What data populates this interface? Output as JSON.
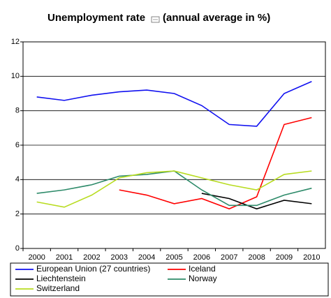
{
  "chart_data": {
    "type": "line",
    "title": "Unemployment rate",
    "subtitle": "(annual average in %)",
    "categories": [
      "2000",
      "2001",
      "2002",
      "2003",
      "2004",
      "2005",
      "2006",
      "2007",
      "2008",
      "2009",
      "2010"
    ],
    "series": [
      {
        "name": "European Union (27 countries)",
        "color": "#1010f0",
        "values": [
          8.8,
          8.6,
          8.9,
          9.1,
          9.2,
          9.0,
          8.3,
          7.2,
          7.1,
          9.0,
          9.7
        ]
      },
      {
        "name": "Iceland",
        "color": "#ff0000",
        "values": [
          null,
          null,
          null,
          3.4,
          3.1,
          2.6,
          2.9,
          2.3,
          3.0,
          7.2,
          7.6
        ]
      },
      {
        "name": "Liechtenstein",
        "color": "#000000",
        "values": [
          null,
          null,
          null,
          null,
          null,
          null,
          3.2,
          2.9,
          2.3,
          2.8,
          2.6
        ]
      },
      {
        "name": "Norway",
        "color": "#2e8b6a",
        "values": [
          3.2,
          3.4,
          3.7,
          4.2,
          4.3,
          4.5,
          3.4,
          2.5,
          2.5,
          3.1,
          3.5
        ]
      },
      {
        "name": "Switzerland",
        "color": "#b8dc20",
        "values": [
          2.7,
          2.4,
          3.1,
          4.1,
          4.4,
          4.5,
          4.1,
          3.7,
          3.4,
          4.3,
          4.5
        ]
      }
    ],
    "ylim": [
      0,
      12
    ],
    "yticks": [
      0,
      2,
      4,
      6,
      8,
      10,
      12
    ],
    "grid": true,
    "legend": "bottom"
  }
}
